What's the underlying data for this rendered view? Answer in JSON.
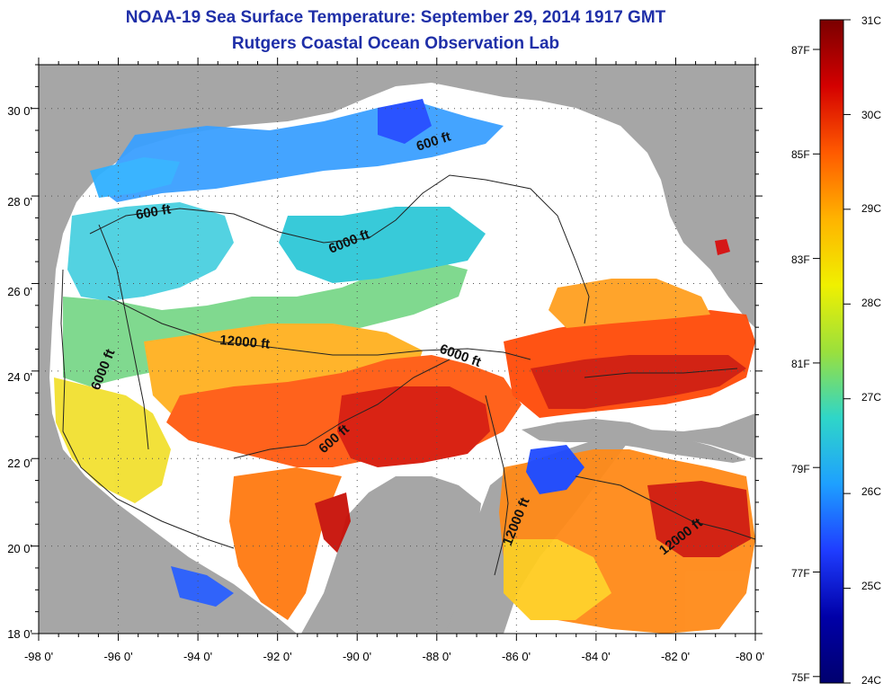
{
  "title_line1": "NOAA-19 Sea Surface Temperature:  September 29, 2014 1917 GMT",
  "title_line2": "Rutgers Coastal Ocean Observation Lab",
  "map": {
    "lon_labels": [
      "-98 0'",
      "-96 0'",
      "-94 0'",
      "-92 0'",
      "-90 0'",
      "-88 0'",
      "-86 0'",
      "-84 0'",
      "-82 0'",
      "-80 0'"
    ],
    "lat_labels": [
      "30 0'",
      "28 0'",
      "26 0'",
      "24 0'",
      "22 0'",
      "20 0'",
      "18 0'"
    ],
    "lon_range": [
      -98,
      -80
    ],
    "lat_range": [
      18,
      31
    ],
    "contour_labels": [
      "600 ft",
      "600 ft",
      "6000 ft",
      "12000 ft",
      "6000 ft",
      "6000 ft",
      "600 ft",
      "12000 ft",
      "12000 ft"
    ]
  },
  "colorbar": {
    "celsius_labels": [
      "31C",
      "30C",
      "29C",
      "28C",
      "27C",
      "26C",
      "25C",
      "24C"
    ],
    "fahrenheit_labels": [
      "87F",
      "85F",
      "83F",
      "81F",
      "79F",
      "77F",
      "75F"
    ],
    "colors": [
      "#7a0000",
      "#d40000",
      "#ff5a00",
      "#ffb300",
      "#f0f000",
      "#9be03c",
      "#2fd6c8",
      "#1ea0ff",
      "#1f3dff",
      "#0000a8",
      "#00006e"
    ]
  }
}
